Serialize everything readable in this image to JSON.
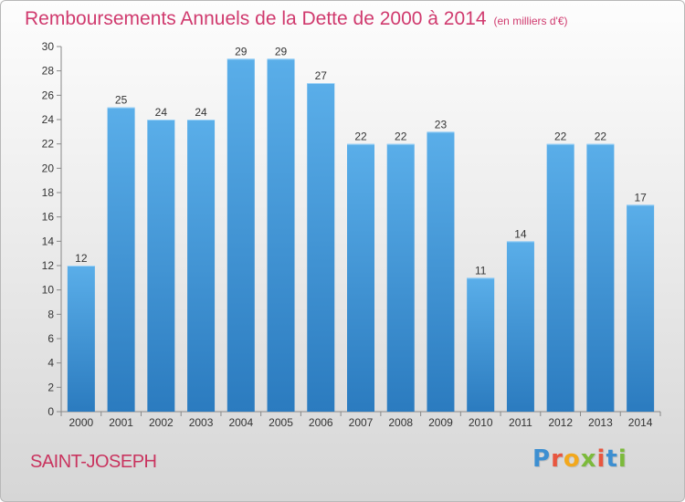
{
  "chart_data": {
    "type": "bar",
    "title": "Remboursements Annuels de la Dette de 2000 à 2014",
    "unit": "(en milliers d'€)",
    "categories": [
      "2000",
      "2001",
      "2002",
      "2003",
      "2004",
      "2005",
      "2006",
      "2007",
      "2008",
      "2009",
      "2010",
      "2011",
      "2012",
      "2013",
      "2014"
    ],
    "values": [
      12,
      25,
      24,
      24,
      29,
      29,
      27,
      22,
      22,
      23,
      11,
      14,
      22,
      22,
      17
    ],
    "ylim": [
      0,
      30
    ],
    "ytick_step": 2,
    "grid": false,
    "bar_color_light": "#5aaee9",
    "bar_color_dark": "#2b7bbf"
  },
  "place": "SAINT-JOSEPH",
  "logo": {
    "text": "Proxiti",
    "letters": [
      {
        "ch": "P",
        "color": "#3d8fd1"
      },
      {
        "ch": "r",
        "color": "#e8563f"
      },
      {
        "ch": "o",
        "color": "#f2a81d"
      },
      {
        "ch": "x",
        "color": "#7cba3b"
      },
      {
        "ch": "i",
        "color": "#e8563f"
      },
      {
        "ch": "t",
        "color": "#3d8fd1"
      },
      {
        "ch": "i",
        "color": "#7cba3b"
      }
    ]
  },
  "colors": {
    "title": "#d03a6e",
    "place": "#c9345f",
    "axis": "#888888",
    "label": "#333333"
  }
}
